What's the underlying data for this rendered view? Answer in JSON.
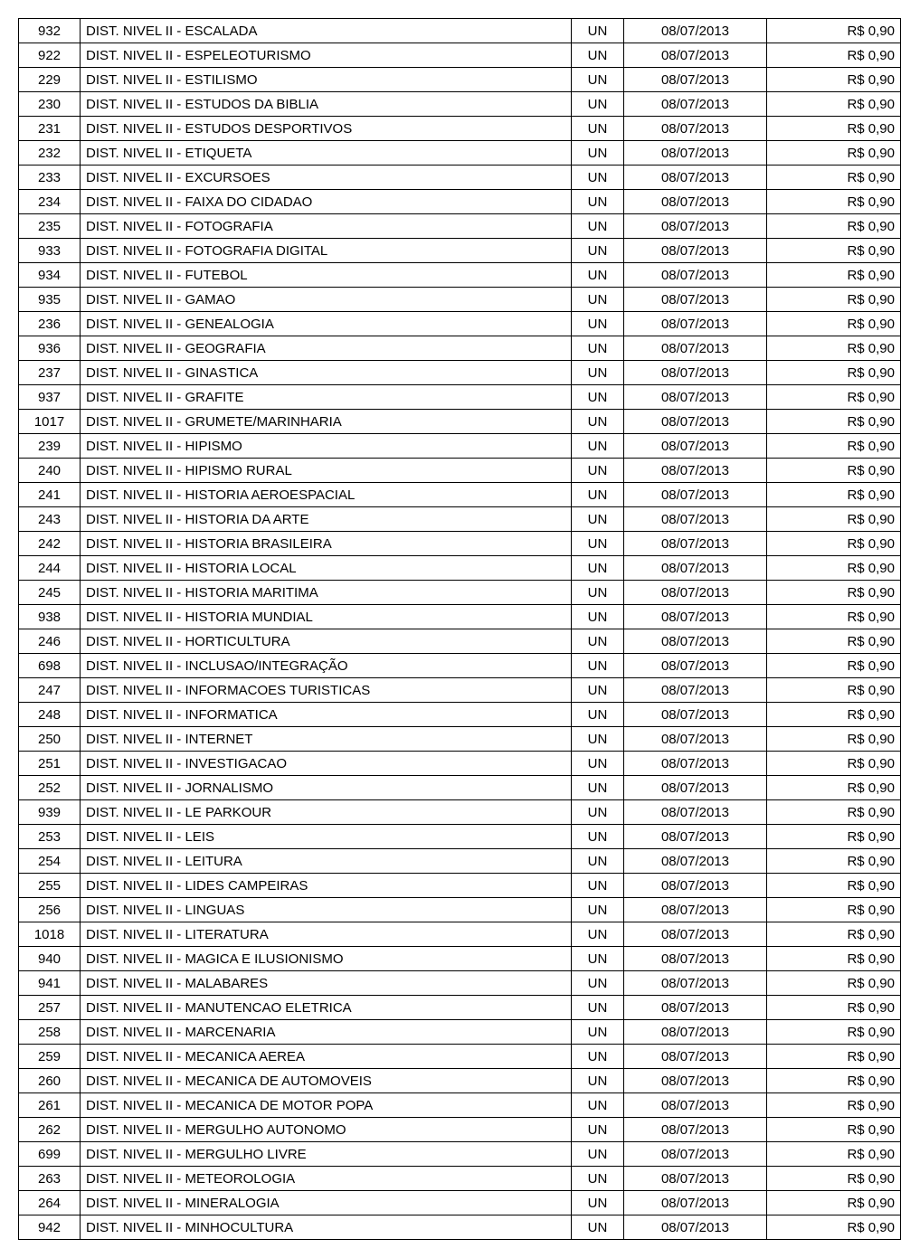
{
  "table": {
    "columns": [
      {
        "key": "code",
        "class": "col-code"
      },
      {
        "key": "desc",
        "class": "col-desc"
      },
      {
        "key": "unit",
        "class": "col-unit"
      },
      {
        "key": "date",
        "class": "col-date"
      },
      {
        "key": "price",
        "class": "col-price"
      }
    ],
    "rows": [
      {
        "code": "932",
        "desc": "DIST. NIVEL II - ESCALADA",
        "unit": "UN",
        "date": "08/07/2013",
        "price": "R$ 0,90"
      },
      {
        "code": "922",
        "desc": "DIST. NIVEL II - ESPELEOTURISMO",
        "unit": "UN",
        "date": "08/07/2013",
        "price": "R$ 0,90"
      },
      {
        "code": "229",
        "desc": "DIST. NIVEL II - ESTILISMO",
        "unit": "UN",
        "date": "08/07/2013",
        "price": "R$ 0,90"
      },
      {
        "code": "230",
        "desc": "DIST. NIVEL II - ESTUDOS DA BIBLIA",
        "unit": "UN",
        "date": "08/07/2013",
        "price": "R$ 0,90"
      },
      {
        "code": "231",
        "desc": "DIST. NIVEL II - ESTUDOS DESPORTIVOS",
        "unit": "UN",
        "date": "08/07/2013",
        "price": "R$ 0,90"
      },
      {
        "code": "232",
        "desc": "DIST. NIVEL II - ETIQUETA",
        "unit": "UN",
        "date": "08/07/2013",
        "price": "R$ 0,90"
      },
      {
        "code": "233",
        "desc": "DIST. NIVEL II - EXCURSOES",
        "unit": "UN",
        "date": "08/07/2013",
        "price": "R$ 0,90"
      },
      {
        "code": "234",
        "desc": "DIST. NIVEL II - FAIXA DO CIDADAO",
        "unit": "UN",
        "date": "08/07/2013",
        "price": "R$ 0,90"
      },
      {
        "code": "235",
        "desc": "DIST. NIVEL II - FOTOGRAFIA",
        "unit": "UN",
        "date": "08/07/2013",
        "price": "R$ 0,90"
      },
      {
        "code": "933",
        "desc": "DIST. NIVEL II - FOTOGRAFIA DIGITAL",
        "unit": "UN",
        "date": "08/07/2013",
        "price": "R$ 0,90"
      },
      {
        "code": "934",
        "desc": "DIST. NIVEL II - FUTEBOL",
        "unit": "UN",
        "date": "08/07/2013",
        "price": "R$ 0,90"
      },
      {
        "code": "935",
        "desc": "DIST. NIVEL II - GAMAO",
        "unit": "UN",
        "date": "08/07/2013",
        "price": "R$ 0,90"
      },
      {
        "code": "236",
        "desc": "DIST. NIVEL II - GENEALOGIA",
        "unit": "UN",
        "date": "08/07/2013",
        "price": "R$ 0,90"
      },
      {
        "code": "936",
        "desc": "DIST. NIVEL II - GEOGRAFIA",
        "unit": "UN",
        "date": "08/07/2013",
        "price": "R$ 0,90"
      },
      {
        "code": "237",
        "desc": "DIST. NIVEL II - GINASTICA",
        "unit": "UN",
        "date": "08/07/2013",
        "price": "R$ 0,90"
      },
      {
        "code": "937",
        "desc": "DIST. NIVEL II - GRAFITE",
        "unit": "UN",
        "date": "08/07/2013",
        "price": "R$ 0,90"
      },
      {
        "code": "1017",
        "desc": "DIST. NIVEL II - GRUMETE/MARINHARIA",
        "unit": "UN",
        "date": "08/07/2013",
        "price": "R$ 0,90"
      },
      {
        "code": "239",
        "desc": "DIST. NIVEL II - HIPISMO",
        "unit": "UN",
        "date": "08/07/2013",
        "price": "R$ 0,90"
      },
      {
        "code": "240",
        "desc": "DIST. NIVEL II - HIPISMO RURAL",
        "unit": "UN",
        "date": "08/07/2013",
        "price": "R$ 0,90"
      },
      {
        "code": "241",
        "desc": "DIST. NIVEL II - HISTORIA AEROESPACIAL",
        "unit": "UN",
        "date": "08/07/2013",
        "price": "R$ 0,90"
      },
      {
        "code": "243",
        "desc": "DIST. NIVEL II - HISTORIA DA ARTE",
        "unit": "UN",
        "date": "08/07/2013",
        "price": "R$ 0,90"
      },
      {
        "code": "242",
        "desc": "DIST. NIVEL II - HISTORIA BRASILEIRA",
        "unit": "UN",
        "date": "08/07/2013",
        "price": "R$ 0,90"
      },
      {
        "code": "244",
        "desc": "DIST. NIVEL II - HISTORIA LOCAL",
        "unit": "UN",
        "date": "08/07/2013",
        "price": "R$ 0,90"
      },
      {
        "code": "245",
        "desc": "DIST. NIVEL II - HISTORIA MARITIMA",
        "unit": "UN",
        "date": "08/07/2013",
        "price": "R$ 0,90"
      },
      {
        "code": "938",
        "desc": "DIST. NIVEL II - HISTORIA MUNDIAL",
        "unit": "UN",
        "date": "08/07/2013",
        "price": "R$ 0,90"
      },
      {
        "code": "246",
        "desc": "DIST. NIVEL II - HORTICULTURA",
        "unit": "UN",
        "date": "08/07/2013",
        "price": "R$ 0,90"
      },
      {
        "code": "698",
        "desc": "DIST. NIVEL II - INCLUSAO/INTEGRAÇÃO",
        "unit": "UN",
        "date": "08/07/2013",
        "price": "R$ 0,90"
      },
      {
        "code": "247",
        "desc": "DIST. NIVEL II - INFORMACOES TURISTICAS",
        "unit": "UN",
        "date": "08/07/2013",
        "price": "R$ 0,90"
      },
      {
        "code": "248",
        "desc": "DIST. NIVEL II - INFORMATICA",
        "unit": "UN",
        "date": "08/07/2013",
        "price": "R$ 0,90"
      },
      {
        "code": "250",
        "desc": "DIST. NIVEL II - INTERNET",
        "unit": "UN",
        "date": "08/07/2013",
        "price": "R$ 0,90"
      },
      {
        "code": "251",
        "desc": "DIST. NIVEL II - INVESTIGACAO",
        "unit": "UN",
        "date": "08/07/2013",
        "price": "R$ 0,90"
      },
      {
        "code": "252",
        "desc": "DIST. NIVEL II - JORNALISMO",
        "unit": "UN",
        "date": "08/07/2013",
        "price": "R$ 0,90"
      },
      {
        "code": "939",
        "desc": "DIST. NIVEL II - LE PARKOUR",
        "unit": "UN",
        "date": "08/07/2013",
        "price": "R$ 0,90"
      },
      {
        "code": "253",
        "desc": "DIST. NIVEL II - LEIS",
        "unit": "UN",
        "date": "08/07/2013",
        "price": "R$ 0,90"
      },
      {
        "code": "254",
        "desc": "DIST. NIVEL II - LEITURA",
        "unit": "UN",
        "date": "08/07/2013",
        "price": "R$ 0,90"
      },
      {
        "code": "255",
        "desc": "DIST. NIVEL II - LIDES CAMPEIRAS",
        "unit": "UN",
        "date": "08/07/2013",
        "price": "R$ 0,90"
      },
      {
        "code": "256",
        "desc": "DIST. NIVEL II - LINGUAS",
        "unit": "UN",
        "date": "08/07/2013",
        "price": "R$ 0,90"
      },
      {
        "code": "1018",
        "desc": "DIST. NIVEL II - LITERATURA",
        "unit": "UN",
        "date": "08/07/2013",
        "price": "R$ 0,90"
      },
      {
        "code": "940",
        "desc": "DIST. NIVEL II - MAGICA E ILUSIONISMO",
        "unit": "UN",
        "date": "08/07/2013",
        "price": "R$ 0,90"
      },
      {
        "code": "941",
        "desc": "DIST. NIVEL II - MALABARES",
        "unit": "UN",
        "date": "08/07/2013",
        "price": "R$ 0,90"
      },
      {
        "code": "257",
        "desc": "DIST. NIVEL II - MANUTENCAO ELETRICA",
        "unit": "UN",
        "date": "08/07/2013",
        "price": "R$ 0,90"
      },
      {
        "code": "258",
        "desc": "DIST. NIVEL II - MARCENARIA",
        "unit": "UN",
        "date": "08/07/2013",
        "price": "R$ 0,90"
      },
      {
        "code": "259",
        "desc": "DIST. NIVEL II - MECANICA AEREA",
        "unit": "UN",
        "date": "08/07/2013",
        "price": "R$ 0,90"
      },
      {
        "code": "260",
        "desc": "DIST. NIVEL II - MECANICA DE AUTOMOVEIS",
        "unit": "UN",
        "date": "08/07/2013",
        "price": "R$ 0,90"
      },
      {
        "code": "261",
        "desc": "DIST. NIVEL II - MECANICA DE MOTOR POPA",
        "unit": "UN",
        "date": "08/07/2013",
        "price": "R$ 0,90"
      },
      {
        "code": "262",
        "desc": "DIST. NIVEL II - MERGULHO AUTONOMO",
        "unit": "UN",
        "date": "08/07/2013",
        "price": "R$ 0,90"
      },
      {
        "code": "699",
        "desc": "DIST. NIVEL II - MERGULHO LIVRE",
        "unit": "UN",
        "date": "08/07/2013",
        "price": "R$ 0,90"
      },
      {
        "code": "263",
        "desc": "DIST. NIVEL II - METEOROLOGIA",
        "unit": "UN",
        "date": "08/07/2013",
        "price": "R$ 0,90"
      },
      {
        "code": "264",
        "desc": "DIST. NIVEL II - MINERALOGIA",
        "unit": "UN",
        "date": "08/07/2013",
        "price": "R$ 0,90"
      },
      {
        "code": "942",
        "desc": "DIST. NIVEL II - MINHOCULTURA",
        "unit": "UN",
        "date": "08/07/2013",
        "price": "R$ 0,90"
      }
    ]
  }
}
